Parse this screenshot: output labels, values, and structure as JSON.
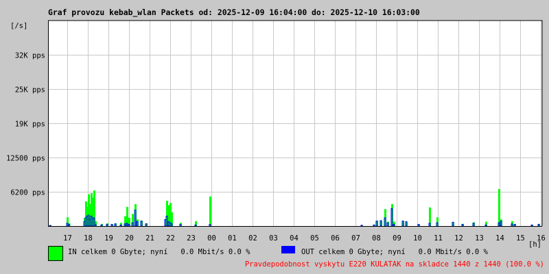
{
  "title": "Graf provozu kebab_wlan Packets od: 2025-12-09 16:04:00 do: 2025-12-10 16:03:00",
  "colors": {
    "background": "#c8c8c8",
    "plot": "#ffffff",
    "grid": "#c8c8c8",
    "in": "#00ff00",
    "out": "#0000ff",
    "notice": "#ff0000"
  },
  "chart_data": {
    "type": "area",
    "title": "Graf provozu kebab_wlan Packets od: 2025-12-09 16:04:00 do: 2025-12-10 16:03:00",
    "ylabel": "[/s]",
    "xlabel": "[h]",
    "x_range": [
      "2025-12-09 16:04",
      "2025-12-10 16:03"
    ],
    "ylim": [
      0,
      37500
    ],
    "grid": true,
    "y_ticks": [
      {
        "value": 6200,
        "label": "6200 pps"
      },
      {
        "value": 12500,
        "label": "12500 pps"
      },
      {
        "value": 19000,
        "label": "19K pps"
      },
      {
        "value": 25000,
        "label": "25K pps"
      },
      {
        "value": 32000,
        "label": "32K pps"
      }
    ],
    "x_ticks": [
      "17",
      "18",
      "19",
      "20",
      "21",
      "22",
      "23",
      "00",
      "01",
      "02",
      "03",
      "04",
      "05",
      "06",
      "07",
      "08",
      "09",
      "10",
      "11",
      "12",
      "13",
      "14",
      "15",
      "16"
    ],
    "series": [
      {
        "name": "IN",
        "color": "#00ff00",
        "style": "filled"
      },
      {
        "name": "OUT",
        "color": "#0000ff",
        "style": "line"
      }
    ],
    "points": [
      [
        "16:10",
        200,
        100
      ],
      [
        "17:00",
        1600,
        500
      ],
      [
        "17:05",
        500,
        300
      ],
      [
        "17:50",
        1500,
        800
      ],
      [
        "17:54",
        4500,
        1500
      ],
      [
        "17:58",
        3500,
        1800
      ],
      [
        "18:02",
        5800,
        2000
      ],
      [
        "18:06",
        4000,
        1200
      ],
      [
        "18:10",
        6000,
        1800
      ],
      [
        "18:14",
        5200,
        1400
      ],
      [
        "18:18",
        6500,
        1500
      ],
      [
        "18:22",
        900,
        300
      ],
      [
        "18:40",
        400,
        200
      ],
      [
        "18:56",
        500,
        300
      ],
      [
        "19:10",
        300,
        300
      ],
      [
        "19:20",
        500,
        400
      ],
      [
        "19:36",
        600,
        200
      ],
      [
        "19:48",
        1800,
        400
      ],
      [
        "19:54",
        3500,
        500
      ],
      [
        "20:00",
        1500,
        300
      ],
      [
        "20:10",
        2200,
        600
      ],
      [
        "20:18",
        4000,
        2900
      ],
      [
        "20:24",
        1200,
        800
      ],
      [
        "20:36",
        1000,
        900
      ],
      [
        "20:50",
        500,
        400
      ],
      [
        "21:46",
        1200,
        1200
      ],
      [
        "21:50",
        4600,
        1800
      ],
      [
        "21:56",
        3800,
        800
      ],
      [
        "22:00",
        4200,
        600
      ],
      [
        "22:04",
        2500,
        400
      ],
      [
        "22:30",
        600,
        300
      ],
      [
        "23:14",
        900,
        200
      ],
      [
        "23:56",
        5400,
        300
      ],
      [
        "07:18",
        100,
        150
      ],
      [
        "07:54",
        200,
        200
      ],
      [
        "08:02",
        1000,
        900
      ],
      [
        "08:14",
        900,
        1000
      ],
      [
        "08:26",
        3100,
        1500
      ],
      [
        "08:34",
        800,
        600
      ],
      [
        "08:46",
        4000,
        3200
      ],
      [
        "08:52",
        800,
        300
      ],
      [
        "09:18",
        1000,
        900
      ],
      [
        "09:28",
        700,
        800
      ],
      [
        "10:04",
        300,
        300
      ],
      [
        "10:36",
        3400,
        500
      ],
      [
        "10:58",
        1600,
        600
      ],
      [
        "11:44",
        600,
        700
      ],
      [
        "12:12",
        400,
        300
      ],
      [
        "12:44",
        700,
        500
      ],
      [
        "13:20",
        800,
        200
      ],
      [
        "13:58",
        6750,
        600
      ],
      [
        "14:04",
        1200,
        900
      ],
      [
        "14:36",
        900,
        400
      ],
      [
        "14:44",
        400,
        300
      ],
      [
        "15:34",
        200,
        200
      ],
      [
        "15:54",
        400,
        300
      ]
    ]
  },
  "legend": {
    "in_text": "IN celkem 0 Gbyte; nyní   0.0 Mbit/s 0.0 %",
    "out_text": "OUT celkem 0 Gbyte; nyní   0.0 Mbit/s 0.0 %"
  },
  "notice": "Pravdepodobnost vyskytu E220 KULATAK na skladce 1440 z 1440 (100.0 %)"
}
